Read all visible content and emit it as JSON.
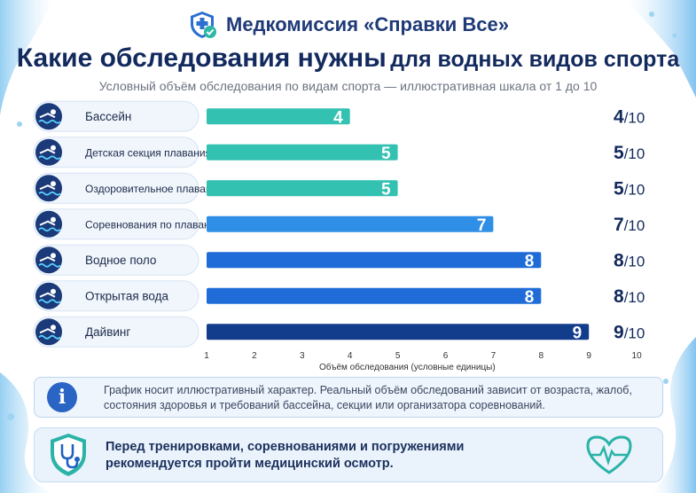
{
  "header": {
    "brand": "Медкомиссия «Справки Все»"
  },
  "title_main": "Какие обследования нужны",
  "title_tail": "для водных видов спорта",
  "subtitle": "Условный объём обследования по видам спорта — иллюстративная шкала от 1 до 10",
  "colors": {
    "teal": "#33c1b1",
    "blue": "#2f8ee6",
    "mid_blue": "#1f6cd8",
    "navy": "#123d8c",
    "title": "#132a5e",
    "icon_circle": "#1a3a7a"
  },
  "chart_data": {
    "type": "bar",
    "orientation": "horizontal",
    "categories": [
      "Бассейн",
      "Детская секция плавания",
      "Оздоровительное плавание",
      "Соревнования по плаванию",
      "Водное поло",
      "Открытая вода",
      "Дайвинг"
    ],
    "values": [
      4,
      5,
      5,
      7,
      8,
      8,
      9
    ],
    "value_labels": [
      "4",
      "5",
      "5",
      "7",
      "8",
      "8",
      "9"
    ],
    "score_labels": [
      "4",
      "5",
      "5",
      "7",
      "8",
      "8",
      "9"
    ],
    "score_suffix": "/10",
    "bar_colors": [
      "#33c1b1",
      "#33c1b1",
      "#33c1b1",
      "#2f8ee6",
      "#1f6cd8",
      "#1f6cd8",
      "#123d8c"
    ],
    "icons": [
      "swimmer-icon",
      "child-swimmer-icon",
      "wellness-swimmer-icon",
      "competition-swimmer-icon",
      "water-polo-ball-icon",
      "open-water-icon",
      "diving-mask-icon"
    ],
    "xlim": [
      1,
      10
    ],
    "xticks": [
      1,
      2,
      3,
      4,
      5,
      6,
      7,
      8,
      9,
      10
    ],
    "xlabel": "Объём обследования (условные единицы)",
    "grid": false,
    "legend": "none"
  },
  "info": {
    "icon": "info-icon",
    "text": "График носит иллюстративный характер. Реальный объём обследований зависит от возраста, жалоб, состояния здоровья и требований бассейна, секции или организатора соревнований."
  },
  "bottom": {
    "icon_left": "shield-stethoscope-icon",
    "icon_right": "heart-pulse-icon",
    "text": "Перед тренировками, соревнованиями и погружениями рекомендуется пройти медицинский осмотр."
  }
}
